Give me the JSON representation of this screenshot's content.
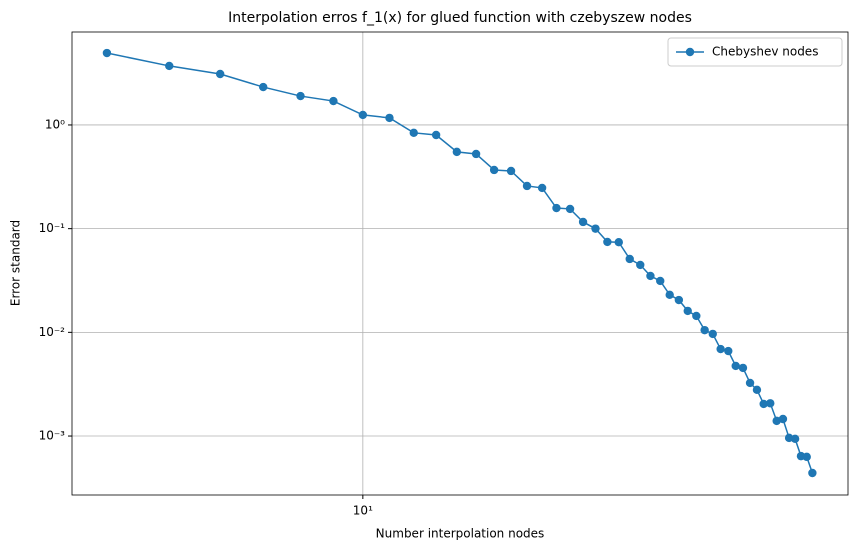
{
  "chart_data": {
    "type": "line",
    "title": "Interpolation erros f_1(x) for glued function with czebyszew nodes",
    "xlabel": "Number interpolation nodes",
    "ylabel": "Error standard",
    "xscale": "log",
    "yscale": "log",
    "grid": true,
    "legend": "upper right",
    "x": [
      4,
      5,
      6,
      7,
      8,
      9,
      10,
      11,
      12,
      13,
      14,
      15,
      16,
      17,
      18,
      19,
      20,
      21,
      22,
      23,
      24,
      25,
      26,
      27,
      28,
      29,
      30,
      31,
      32,
      33,
      34,
      35,
      36,
      37,
      38,
      39,
      40,
      41,
      42,
      43,
      44,
      45,
      46,
      47,
      48,
      49,
      50
    ],
    "series": [
      {
        "name": "Chebyshev nodes",
        "color": "#1f77b4",
        "values": [
          4.94,
          3.71,
          3.1,
          2.32,
          1.9,
          1.7,
          1.25,
          1.17,
          0.84,
          0.8,
          0.55,
          0.525,
          0.368,
          0.36,
          0.258,
          0.247,
          0.158,
          0.155,
          0.116,
          0.1,
          0.0745,
          0.074,
          0.051,
          0.0447,
          0.035,
          0.0313,
          0.023,
          0.0205,
          0.0161,
          0.0144,
          0.0105,
          0.00966,
          0.0069,
          0.0066,
          0.00474,
          0.00454,
          0.00325,
          0.00279,
          0.00204,
          0.00207,
          0.0014,
          0.00146,
          0.00096,
          0.00094,
          0.00064,
          0.00063,
          0.00044
        ]
      }
    ],
    "xlim": [
      3.53,
      56.8
    ],
    "xticks": [
      {
        "value": 10,
        "label": "10¹"
      }
    ],
    "ylim": [
      0.00027,
      7.88
    ],
    "yticks": [
      {
        "value": 0.001,
        "label": "10⁻³"
      },
      {
        "value": 0.01,
        "label": "10⁻²"
      },
      {
        "value": 0.1,
        "label": "10⁻¹"
      },
      {
        "value": 1,
        "label": "10⁰"
      }
    ]
  }
}
